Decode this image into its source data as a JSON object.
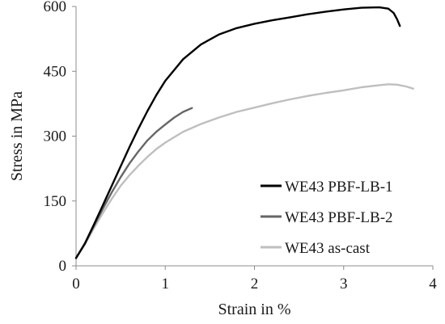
{
  "chart_data": {
    "type": "line",
    "title": "",
    "xlabel": "Strain in %",
    "ylabel": "Stress in MPa",
    "xlim": [
      0,
      4
    ],
    "ylim": [
      0,
      600
    ],
    "xticks": [
      0,
      1,
      2,
      3,
      4
    ],
    "yticks": [
      0,
      150,
      300,
      450,
      600
    ],
    "grid": false,
    "legend_position": "bottom-right",
    "series": [
      {
        "name": "WE43 PBF-LB-1",
        "color": "#000000",
        "x": [
          0,
          0.1,
          0.2,
          0.3,
          0.4,
          0.5,
          0.6,
          0.7,
          0.8,
          0.9,
          1.0,
          1.2,
          1.4,
          1.6,
          1.8,
          2.0,
          2.2,
          2.4,
          2.6,
          2.8,
          3.0,
          3.2,
          3.4,
          3.5,
          3.56,
          3.6,
          3.63
        ],
        "y": [
          18,
          52,
          95,
          140,
          185,
          230,
          275,
          318,
          358,
          395,
          428,
          478,
          512,
          535,
          550,
          560,
          568,
          575,
          582,
          588,
          593,
          597,
          598,
          595,
          585,
          570,
          555
        ]
      },
      {
        "name": "WE43 PBF-LB-2",
        "color": "#666666",
        "x": [
          0,
          0.1,
          0.2,
          0.3,
          0.4,
          0.5,
          0.6,
          0.7,
          0.8,
          0.9,
          1.0,
          1.1,
          1.2,
          1.3
        ],
        "y": [
          18,
          52,
          92,
          132,
          170,
          205,
          237,
          265,
          290,
          310,
          327,
          343,
          356,
          365
        ]
      },
      {
        "name": "WE43 as-cast",
        "color": "#bfbfbf",
        "x": [
          0,
          0.1,
          0.2,
          0.3,
          0.4,
          0.5,
          0.6,
          0.7,
          0.8,
          0.9,
          1.0,
          1.2,
          1.4,
          1.6,
          1.8,
          2.0,
          2.2,
          2.4,
          2.6,
          2.8,
          3.0,
          3.2,
          3.4,
          3.5,
          3.6,
          3.7,
          3.78
        ],
        "y": [
          18,
          50,
          87,
          122,
          155,
          185,
          210,
          232,
          252,
          270,
          285,
          310,
          328,
          343,
          356,
          366,
          376,
          385,
          393,
          400,
          406,
          413,
          418,
          420,
          419,
          415,
          410
        ]
      }
    ]
  }
}
